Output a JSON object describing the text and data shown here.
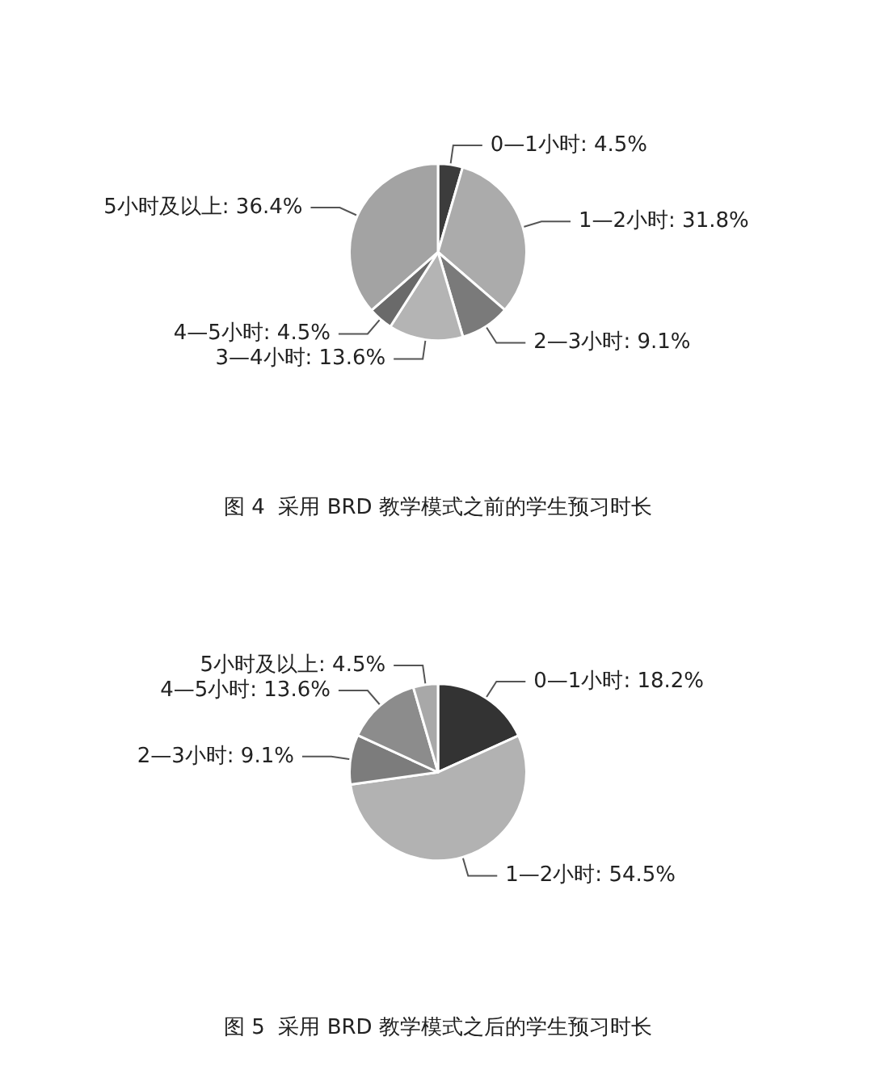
{
  "chart_data": [
    {
      "type": "pie",
      "title": "图 4  采用 BRD 教学模式之前的学生预习时长",
      "categories": [
        "0—1小时",
        "1—2小时",
        "2—3小时",
        "3—4小时",
        "4—5小时",
        "5小时及以上"
      ],
      "values": [
        4.5,
        31.8,
        9.1,
        13.6,
        4.5,
        36.4
      ],
      "value_labels": [
        "4.5%",
        "31.8%",
        "9.1%",
        "13.6%",
        "4.5%",
        "36.4%"
      ],
      "colors": [
        "#3c3c3c",
        "#ababab",
        "#7a7a7a",
        "#b4b4b4",
        "#6a6a6a",
        "#a3a3a3"
      ]
    },
    {
      "type": "pie",
      "title": "图 5  采用 BRD 教学模式之后的学生预习时长",
      "categories": [
        "0—1小时",
        "1—2小时",
        "2—3小时",
        "4—5小时",
        "5小时及以上"
      ],
      "values": [
        18.2,
        54.5,
        9.1,
        13.6,
        4.5
      ],
      "value_labels": [
        "18.2%",
        "54.5%",
        "9.1%",
        "13.6%",
        "4.5%"
      ],
      "colors": [
        "#333333",
        "#b2b2b2",
        "#7c7c7c",
        "#8c8c8c",
        "#a8a8a8"
      ]
    }
  ]
}
